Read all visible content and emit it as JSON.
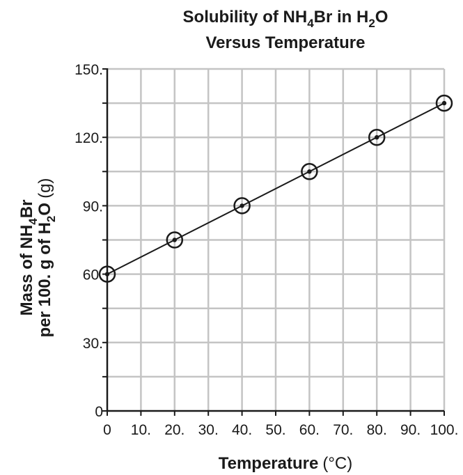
{
  "chart_data": {
    "type": "scatter",
    "title": {
      "line1_main": "Solubility of NH",
      "line1_sub1": "4",
      "line1_mid": "Br in H",
      "line1_sub2": "2",
      "line1_end": "O",
      "line2": "Versus Temperature"
    },
    "xlabel": {
      "main": "Temperature",
      "unit": "(°C)"
    },
    "ylabel": {
      "line1_main": "Mass of NH",
      "line1_sub": "4",
      "line1_end": "Br",
      "line2_main": "per 100. g of H",
      "line2_sub": "2",
      "line2_end": "O",
      "line2_unit": "(g)"
    },
    "xlim": [
      0,
      100
    ],
    "ylim": [
      0,
      150
    ],
    "x_ticks": [
      0,
      10,
      20,
      30,
      40,
      50,
      60,
      70,
      80,
      90,
      100
    ],
    "x_tick_labels": [
      "0",
      "10.",
      "20.",
      "30.",
      "40.",
      "50.",
      "60.",
      "70.",
      "80.",
      "90.",
      "100."
    ],
    "y_ticks": [
      0,
      30,
      60,
      90,
      120,
      150
    ],
    "y_tick_labels": [
      "0",
      "30.",
      "60.",
      "90.",
      "120.",
      "150."
    ],
    "y_minor_step": 15,
    "grid": true,
    "series": [
      {
        "points": [
          {
            "x": 0,
            "y": 60
          },
          {
            "x": 20,
            "y": 75
          },
          {
            "x": 40,
            "y": 90
          },
          {
            "x": 60,
            "y": 105
          },
          {
            "x": 80,
            "y": 120
          },
          {
            "x": 100,
            "y": 135
          }
        ],
        "marker": "circled-dot",
        "line": "best-fit"
      }
    ],
    "colors": {
      "ink": "#1a1a1a",
      "grid": "#c4c4c4"
    }
  }
}
